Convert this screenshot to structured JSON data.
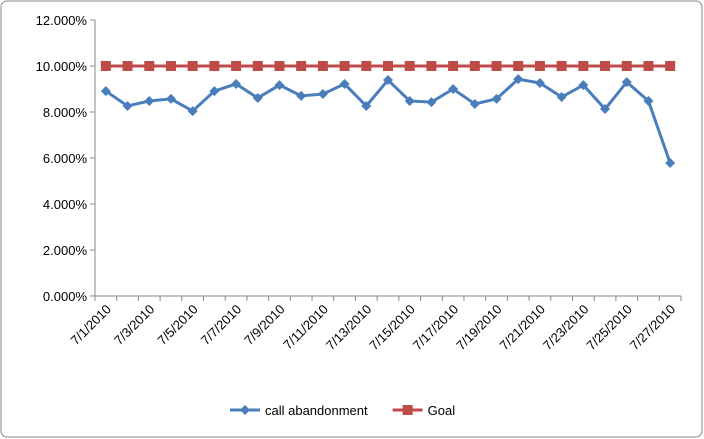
{
  "chart_data": {
    "type": "line",
    "categories": [
      "7/1/2010",
      null,
      "7/3/2010",
      null,
      "7/5/2010",
      null,
      "7/7/2010",
      null,
      "7/9/2010",
      null,
      "7/11/2010",
      null,
      "7/13/2010",
      null,
      "7/15/2010",
      null,
      "7/17/2010",
      null,
      "7/19/2010",
      null,
      "7/21/2010",
      null,
      "7/23/2010",
      null,
      "7/25/2010",
      null,
      "7/27/2010"
    ],
    "series": [
      {
        "name": "call abandonment",
        "color": "#4a7ebb",
        "marker": "diamond",
        "values": [
          8.91,
          8.26,
          8.48,
          8.57,
          8.04,
          8.91,
          9.22,
          8.61,
          9.17,
          8.7,
          8.78,
          9.22,
          8.26,
          9.39,
          8.48,
          8.43,
          9.0,
          8.35,
          8.57,
          9.43,
          9.26,
          8.65,
          9.17,
          8.13,
          9.3,
          8.48,
          5.78
        ]
      },
      {
        "name": "Goal",
        "color": "#be4b48",
        "marker": "square",
        "values": [
          10,
          10,
          10,
          10,
          10,
          10,
          10,
          10,
          10,
          10,
          10,
          10,
          10,
          10,
          10,
          10,
          10,
          10,
          10,
          10,
          10,
          10,
          10,
          10,
          10,
          10,
          10
        ]
      }
    ],
    "ylim": [
      0,
      12
    ],
    "yticks": [
      {
        "value": 0,
        "label": "0.000%"
      },
      {
        "value": 2,
        "label": "2.000%"
      },
      {
        "value": 4,
        "label": "4.000%"
      },
      {
        "value": 6,
        "label": "6.000%"
      },
      {
        "value": 8,
        "label": "8.000%"
      },
      {
        "value": 10,
        "label": "10.000%"
      },
      {
        "value": 12,
        "label": "12.000%"
      }
    ],
    "grid": false,
    "legend": "bottom"
  }
}
